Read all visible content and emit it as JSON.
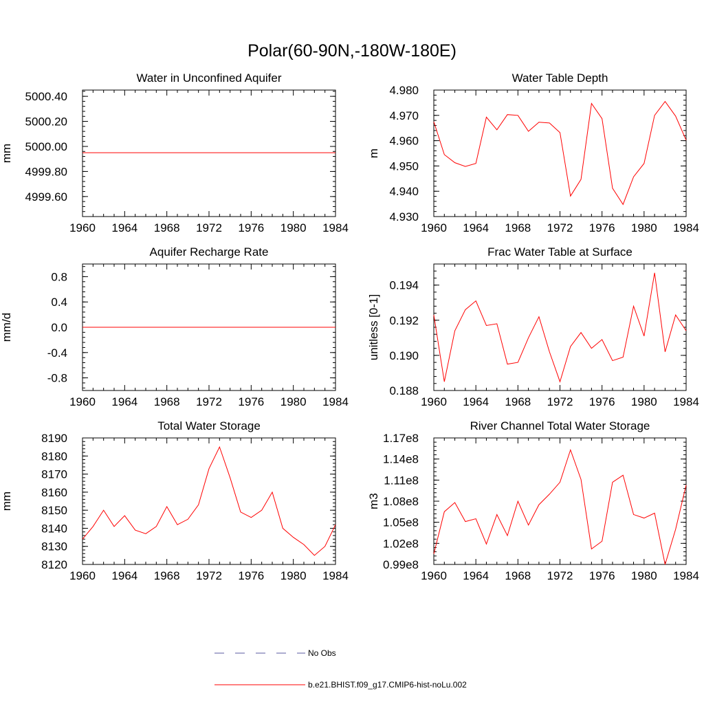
{
  "figure": {
    "title": "Polar(60-90N,-180W-180E)"
  },
  "legend": {
    "entries": [
      {
        "label": "No Obs",
        "style": "dashed",
        "color": "#5a5aa0"
      },
      {
        "label": "b.e21.BHIST.f09_g17.CMIP6-hist-noLu.002",
        "style": "solid",
        "color": "#ff0000"
      }
    ]
  },
  "chart_data": [
    {
      "type": "line",
      "title": "Water in Unconfined Aquifer",
      "xlabel": "",
      "ylabel": "mm",
      "xlim": [
        1960,
        1984
      ],
      "ylim": [
        4999.44,
        5000.45
      ],
      "xticks": [
        1960,
        1964,
        1968,
        1972,
        1976,
        1980,
        1984
      ],
      "xtick_labels": [
        "1960",
        "1964",
        "1968",
        "1972",
        "1976",
        "1980",
        "1984"
      ],
      "yticks": [
        4999.6,
        4999.8,
        5000.0,
        5000.2,
        5000.4
      ],
      "ytick_labels": [
        "4999.60",
        "4999.80",
        "5000.00",
        "5000.20",
        "5000.40"
      ],
      "y_minor_step": 0.04,
      "series": [
        {
          "color": "#ff0000",
          "x": [
            1960,
            1961,
            1962,
            1963,
            1964,
            1965,
            1966,
            1967,
            1968,
            1969,
            1970,
            1971,
            1972,
            1973,
            1974,
            1975,
            1976,
            1977,
            1978,
            1979,
            1980,
            1981,
            1982,
            1983,
            1984
          ],
          "y": [
            4999.95,
            4999.95,
            4999.95,
            4999.95,
            4999.95,
            4999.95,
            4999.95,
            4999.95,
            4999.95,
            4999.95,
            4999.95,
            4999.95,
            4999.95,
            4999.95,
            4999.95,
            4999.95,
            4999.95,
            4999.95,
            4999.95,
            4999.95,
            4999.95,
            4999.95,
            4999.95,
            4999.95,
            4999.95
          ]
        }
      ]
    },
    {
      "type": "line",
      "title": "Water Table Depth",
      "xlabel": "",
      "ylabel": "m",
      "xlim": [
        1960,
        1984
      ],
      "ylim": [
        4.93,
        4.98
      ],
      "xticks": [
        1960,
        1964,
        1968,
        1972,
        1976,
        1980,
        1984
      ],
      "xtick_labels": [
        "1960",
        "1964",
        "1968",
        "1972",
        "1976",
        "1980",
        "1984"
      ],
      "yticks": [
        4.93,
        4.94,
        4.95,
        4.96,
        4.97,
        4.98
      ],
      "ytick_labels": [
        "4.930",
        "4.940",
        "4.950",
        "4.960",
        "4.970",
        "4.980"
      ],
      "y_minor_step": 0.002,
      "series": [
        {
          "color": "#ff0000",
          "x": [
            1960,
            1961,
            1962,
            1963,
            1964,
            1965,
            1966,
            1967,
            1968,
            1969,
            1970,
            1971,
            1972,
            1973,
            1974,
            1975,
            1976,
            1977,
            1978,
            1979,
            1980,
            1981,
            1982,
            1983,
            1984
          ],
          "y": [
            4.9675,
            4.9545,
            4.9513,
            4.9498,
            4.951,
            4.9693,
            4.9643,
            4.9703,
            4.97,
            4.9637,
            4.9673,
            4.967,
            4.9632,
            4.9381,
            4.9447,
            4.9747,
            4.9687,
            4.9412,
            4.9348,
            4.9457,
            4.951,
            4.97,
            4.9755,
            4.9697,
            4.9602
          ]
        }
      ]
    },
    {
      "type": "line",
      "title": "Aquifer Recharge Rate",
      "xlabel": "",
      "ylabel": "mm/d",
      "xlim": [
        1960,
        1984
      ],
      "ylim": [
        -1.0,
        1.0
      ],
      "xticks": [
        1960,
        1964,
        1968,
        1972,
        1976,
        1980,
        1984
      ],
      "xtick_labels": [
        "1960",
        "1964",
        "1968",
        "1972",
        "1976",
        "1980",
        "1984"
      ],
      "yticks": [
        -0.8,
        -0.4,
        0.0,
        0.4,
        0.8
      ],
      "ytick_labels": [
        "-0.8",
        "-0.4",
        "0.0",
        "0.4",
        "0.8"
      ],
      "y_minor_step": 0.08,
      "series": [
        {
          "color": "#ff0000",
          "x": [
            1960,
            1961,
            1962,
            1963,
            1964,
            1965,
            1966,
            1967,
            1968,
            1969,
            1970,
            1971,
            1972,
            1973,
            1974,
            1975,
            1976,
            1977,
            1978,
            1979,
            1980,
            1981,
            1982,
            1983,
            1984
          ],
          "y": [
            0,
            0,
            0,
            0,
            0,
            0,
            0,
            0,
            0,
            0,
            0,
            0,
            0,
            0,
            0,
            0,
            0,
            0,
            0,
            0,
            0,
            0,
            0,
            0,
            0
          ]
        }
      ]
    },
    {
      "type": "line",
      "title": "Frac Water Table at Surface",
      "xlabel": "",
      "ylabel": "unitless [0-1]",
      "xlim": [
        1960,
        1984
      ],
      "ylim": [
        0.188,
        0.1952
      ],
      "xticks": [
        1960,
        1964,
        1968,
        1972,
        1976,
        1980,
        1984
      ],
      "xtick_labels": [
        "1960",
        "1964",
        "1968",
        "1972",
        "1976",
        "1980",
        "1984"
      ],
      "yticks": [
        0.188,
        0.19,
        0.192,
        0.194
      ],
      "ytick_labels": [
        "0.188",
        "0.190",
        "0.192",
        "0.194"
      ],
      "y_minor_step": 0.0004,
      "series": [
        {
          "color": "#ff0000",
          "x": [
            1960,
            1961,
            1962,
            1963,
            1964,
            1965,
            1966,
            1967,
            1968,
            1969,
            1970,
            1971,
            1972,
            1973,
            1974,
            1975,
            1976,
            1977,
            1978,
            1979,
            1980,
            1981,
            1982,
            1983,
            1984
          ],
          "y": [
            0.1923,
            0.1885,
            0.1914,
            0.1926,
            0.1931,
            0.1917,
            0.1918,
            0.1895,
            0.1896,
            0.191,
            0.1922,
            0.1902,
            0.1885,
            0.1905,
            0.1913,
            0.1904,
            0.1909,
            0.1897,
            0.1899,
            0.1928,
            0.1911,
            0.1947,
            0.1902,
            0.1923,
            0.1914
          ]
        }
      ]
    },
    {
      "type": "line",
      "title": "Total Water Storage",
      "xlabel": "",
      "ylabel": "mm",
      "xlim": [
        1960,
        1984
      ],
      "ylim": [
        8120,
        8190
      ],
      "xticks": [
        1960,
        1964,
        1968,
        1972,
        1976,
        1980,
        1984
      ],
      "xtick_labels": [
        "1960",
        "1964",
        "1968",
        "1972",
        "1976",
        "1980",
        "1984"
      ],
      "yticks": [
        8120,
        8130,
        8140,
        8150,
        8160,
        8170,
        8180,
        8190
      ],
      "ytick_labels": [
        "8120",
        "8130",
        "8140",
        "8150",
        "8160",
        "8170",
        "8180",
        "8190"
      ],
      "y_minor_step": 2,
      "series": [
        {
          "color": "#ff0000",
          "x": [
            1960,
            1961,
            1962,
            1963,
            1964,
            1965,
            1966,
            1967,
            1968,
            1969,
            1970,
            1971,
            1972,
            1973,
            1974,
            1975,
            1976,
            1977,
            1978,
            1979,
            1980,
            1981,
            1982,
            1983,
            1984
          ],
          "y": [
            8134,
            8141,
            8150,
            8141,
            8147,
            8139,
            8137,
            8141,
            8152,
            8142,
            8145,
            8153,
            8173,
            8185,
            8168,
            8149,
            8146,
            8150,
            8160,
            8140,
            8135,
            8131,
            8125,
            8130,
            8142
          ]
        }
      ]
    },
    {
      "type": "line",
      "title": "River Channel Total Water Storage",
      "xlabel": "",
      "ylabel": "m3",
      "xlim": [
        1960,
        1984
      ],
      "ylim": [
        99000000.0,
        117000000.0
      ],
      "xticks": [
        1960,
        1964,
        1968,
        1972,
        1976,
        1980,
        1984
      ],
      "xtick_labels": [
        "1960",
        "1964",
        "1968",
        "1972",
        "1976",
        "1980",
        "1984"
      ],
      "yticks": [
        99000000.0,
        102000000.0,
        105000000.0,
        108000000.0,
        111000000.0,
        114000000.0,
        117000000.0
      ],
      "ytick_labels": [
        "0.99e8",
        "1.02e8",
        "1.05e8",
        "1.08e8",
        "1.11e8",
        "1.14e8",
        "1.17e8"
      ],
      "y_minor_step": 600000,
      "series": [
        {
          "color": "#ff0000",
          "x": [
            1960,
            1961,
            1962,
            1963,
            1964,
            1965,
            1966,
            1967,
            1968,
            1969,
            1970,
            1971,
            1972,
            1973,
            1974,
            1975,
            1976,
            1977,
            1978,
            1979,
            1980,
            1981,
            1982,
            1983,
            1984
          ],
          "y": [
            100500000.0,
            106500000.0,
            107800000.0,
            105100000.0,
            105500000.0,
            101900000.0,
            106100000.0,
            103100000.0,
            108000000.0,
            104600000.0,
            107500000.0,
            109000000.0,
            110700000.0,
            115300000.0,
            111100000.0,
            101200000.0,
            102300000.0,
            110700000.0,
            111700000.0,
            106100000.0,
            105600000.0,
            106300000.0,
            99000000.0,
            104000000.0,
            110300000.0
          ]
        }
      ]
    }
  ]
}
